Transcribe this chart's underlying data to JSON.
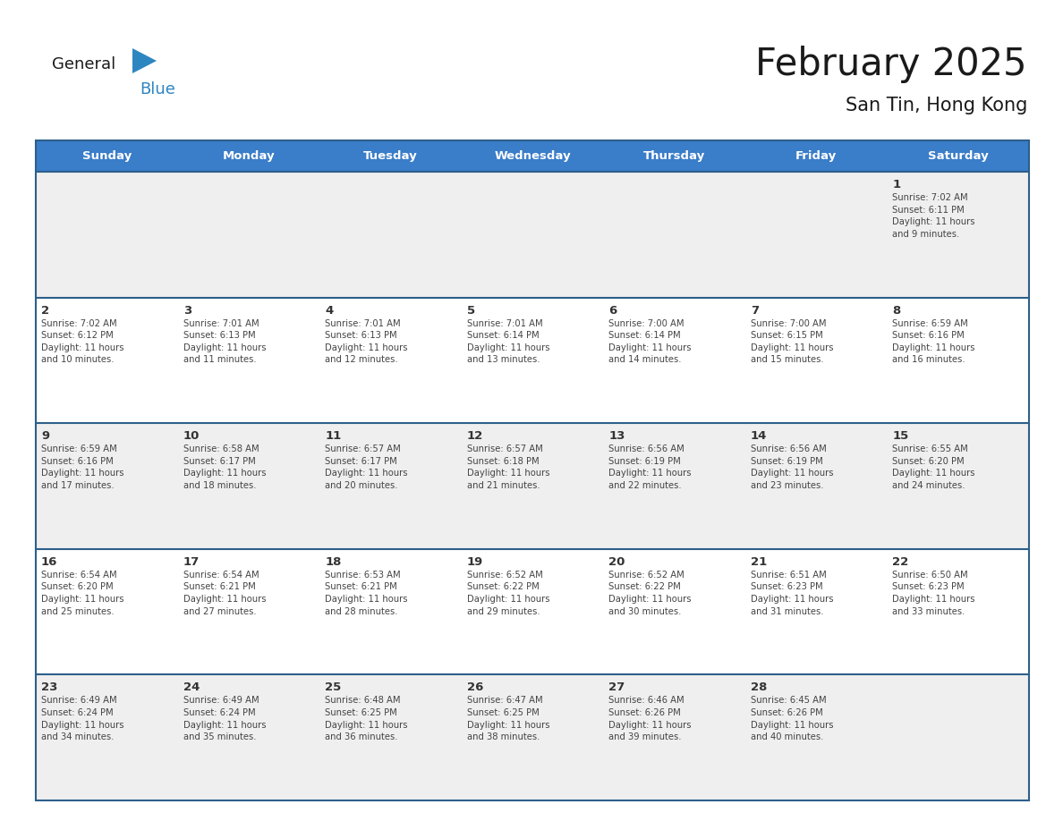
{
  "title": "February 2025",
  "subtitle": "San Tin, Hong Kong",
  "days_of_week": [
    "Sunday",
    "Monday",
    "Tuesday",
    "Wednesday",
    "Thursday",
    "Friday",
    "Saturday"
  ],
  "header_bg": "#3A7DC9",
  "header_text_color": "#FFFFFF",
  "cell_bg_odd": "#EFEFEF",
  "cell_bg_even": "#FFFFFF",
  "cell_border_color": "#2D5F8A",
  "text_color": "#333333",
  "title_color": "#1A1A1A",
  "general_color": "#1A1A1A",
  "blue_color": "#2E86C1",
  "logo_general_color": "#1A1A1A",
  "calendar_data": [
    [
      null,
      null,
      null,
      null,
      null,
      null,
      1
    ],
    [
      2,
      3,
      4,
      5,
      6,
      7,
      8
    ],
    [
      9,
      10,
      11,
      12,
      13,
      14,
      15
    ],
    [
      16,
      17,
      18,
      19,
      20,
      21,
      22
    ],
    [
      23,
      24,
      25,
      26,
      27,
      28,
      null
    ]
  ],
  "sunrise_data": {
    "1": "Sunrise: 7:02 AM\nSunset: 6:11 PM\nDaylight: 11 hours\nand 9 minutes.",
    "2": "Sunrise: 7:02 AM\nSunset: 6:12 PM\nDaylight: 11 hours\nand 10 minutes.",
    "3": "Sunrise: 7:01 AM\nSunset: 6:13 PM\nDaylight: 11 hours\nand 11 minutes.",
    "4": "Sunrise: 7:01 AM\nSunset: 6:13 PM\nDaylight: 11 hours\nand 12 minutes.",
    "5": "Sunrise: 7:01 AM\nSunset: 6:14 PM\nDaylight: 11 hours\nand 13 minutes.",
    "6": "Sunrise: 7:00 AM\nSunset: 6:14 PM\nDaylight: 11 hours\nand 14 minutes.",
    "7": "Sunrise: 7:00 AM\nSunset: 6:15 PM\nDaylight: 11 hours\nand 15 minutes.",
    "8": "Sunrise: 6:59 AM\nSunset: 6:16 PM\nDaylight: 11 hours\nand 16 minutes.",
    "9": "Sunrise: 6:59 AM\nSunset: 6:16 PM\nDaylight: 11 hours\nand 17 minutes.",
    "10": "Sunrise: 6:58 AM\nSunset: 6:17 PM\nDaylight: 11 hours\nand 18 minutes.",
    "11": "Sunrise: 6:57 AM\nSunset: 6:17 PM\nDaylight: 11 hours\nand 20 minutes.",
    "12": "Sunrise: 6:57 AM\nSunset: 6:18 PM\nDaylight: 11 hours\nand 21 minutes.",
    "13": "Sunrise: 6:56 AM\nSunset: 6:19 PM\nDaylight: 11 hours\nand 22 minutes.",
    "14": "Sunrise: 6:56 AM\nSunset: 6:19 PM\nDaylight: 11 hours\nand 23 minutes.",
    "15": "Sunrise: 6:55 AM\nSunset: 6:20 PM\nDaylight: 11 hours\nand 24 minutes.",
    "16": "Sunrise: 6:54 AM\nSunset: 6:20 PM\nDaylight: 11 hours\nand 25 minutes.",
    "17": "Sunrise: 6:54 AM\nSunset: 6:21 PM\nDaylight: 11 hours\nand 27 minutes.",
    "18": "Sunrise: 6:53 AM\nSunset: 6:21 PM\nDaylight: 11 hours\nand 28 minutes.",
    "19": "Sunrise: 6:52 AM\nSunset: 6:22 PM\nDaylight: 11 hours\nand 29 minutes.",
    "20": "Sunrise: 6:52 AM\nSunset: 6:22 PM\nDaylight: 11 hours\nand 30 minutes.",
    "21": "Sunrise: 6:51 AM\nSunset: 6:23 PM\nDaylight: 11 hours\nand 31 minutes.",
    "22": "Sunrise: 6:50 AM\nSunset: 6:23 PM\nDaylight: 11 hours\nand 33 minutes.",
    "23": "Sunrise: 6:49 AM\nSunset: 6:24 PM\nDaylight: 11 hours\nand 34 minutes.",
    "24": "Sunrise: 6:49 AM\nSunset: 6:24 PM\nDaylight: 11 hours\nand 35 minutes.",
    "25": "Sunrise: 6:48 AM\nSunset: 6:25 PM\nDaylight: 11 hours\nand 36 minutes.",
    "26": "Sunrise: 6:47 AM\nSunset: 6:25 PM\nDaylight: 11 hours\nand 38 minutes.",
    "27": "Sunrise: 6:46 AM\nSunset: 6:26 PM\nDaylight: 11 hours\nand 39 minutes.",
    "28": "Sunrise: 6:45 AM\nSunset: 6:26 PM\nDaylight: 11 hours\nand 40 minutes."
  },
  "fig_width": 11.88,
  "fig_height": 9.18,
  "dpi": 100
}
